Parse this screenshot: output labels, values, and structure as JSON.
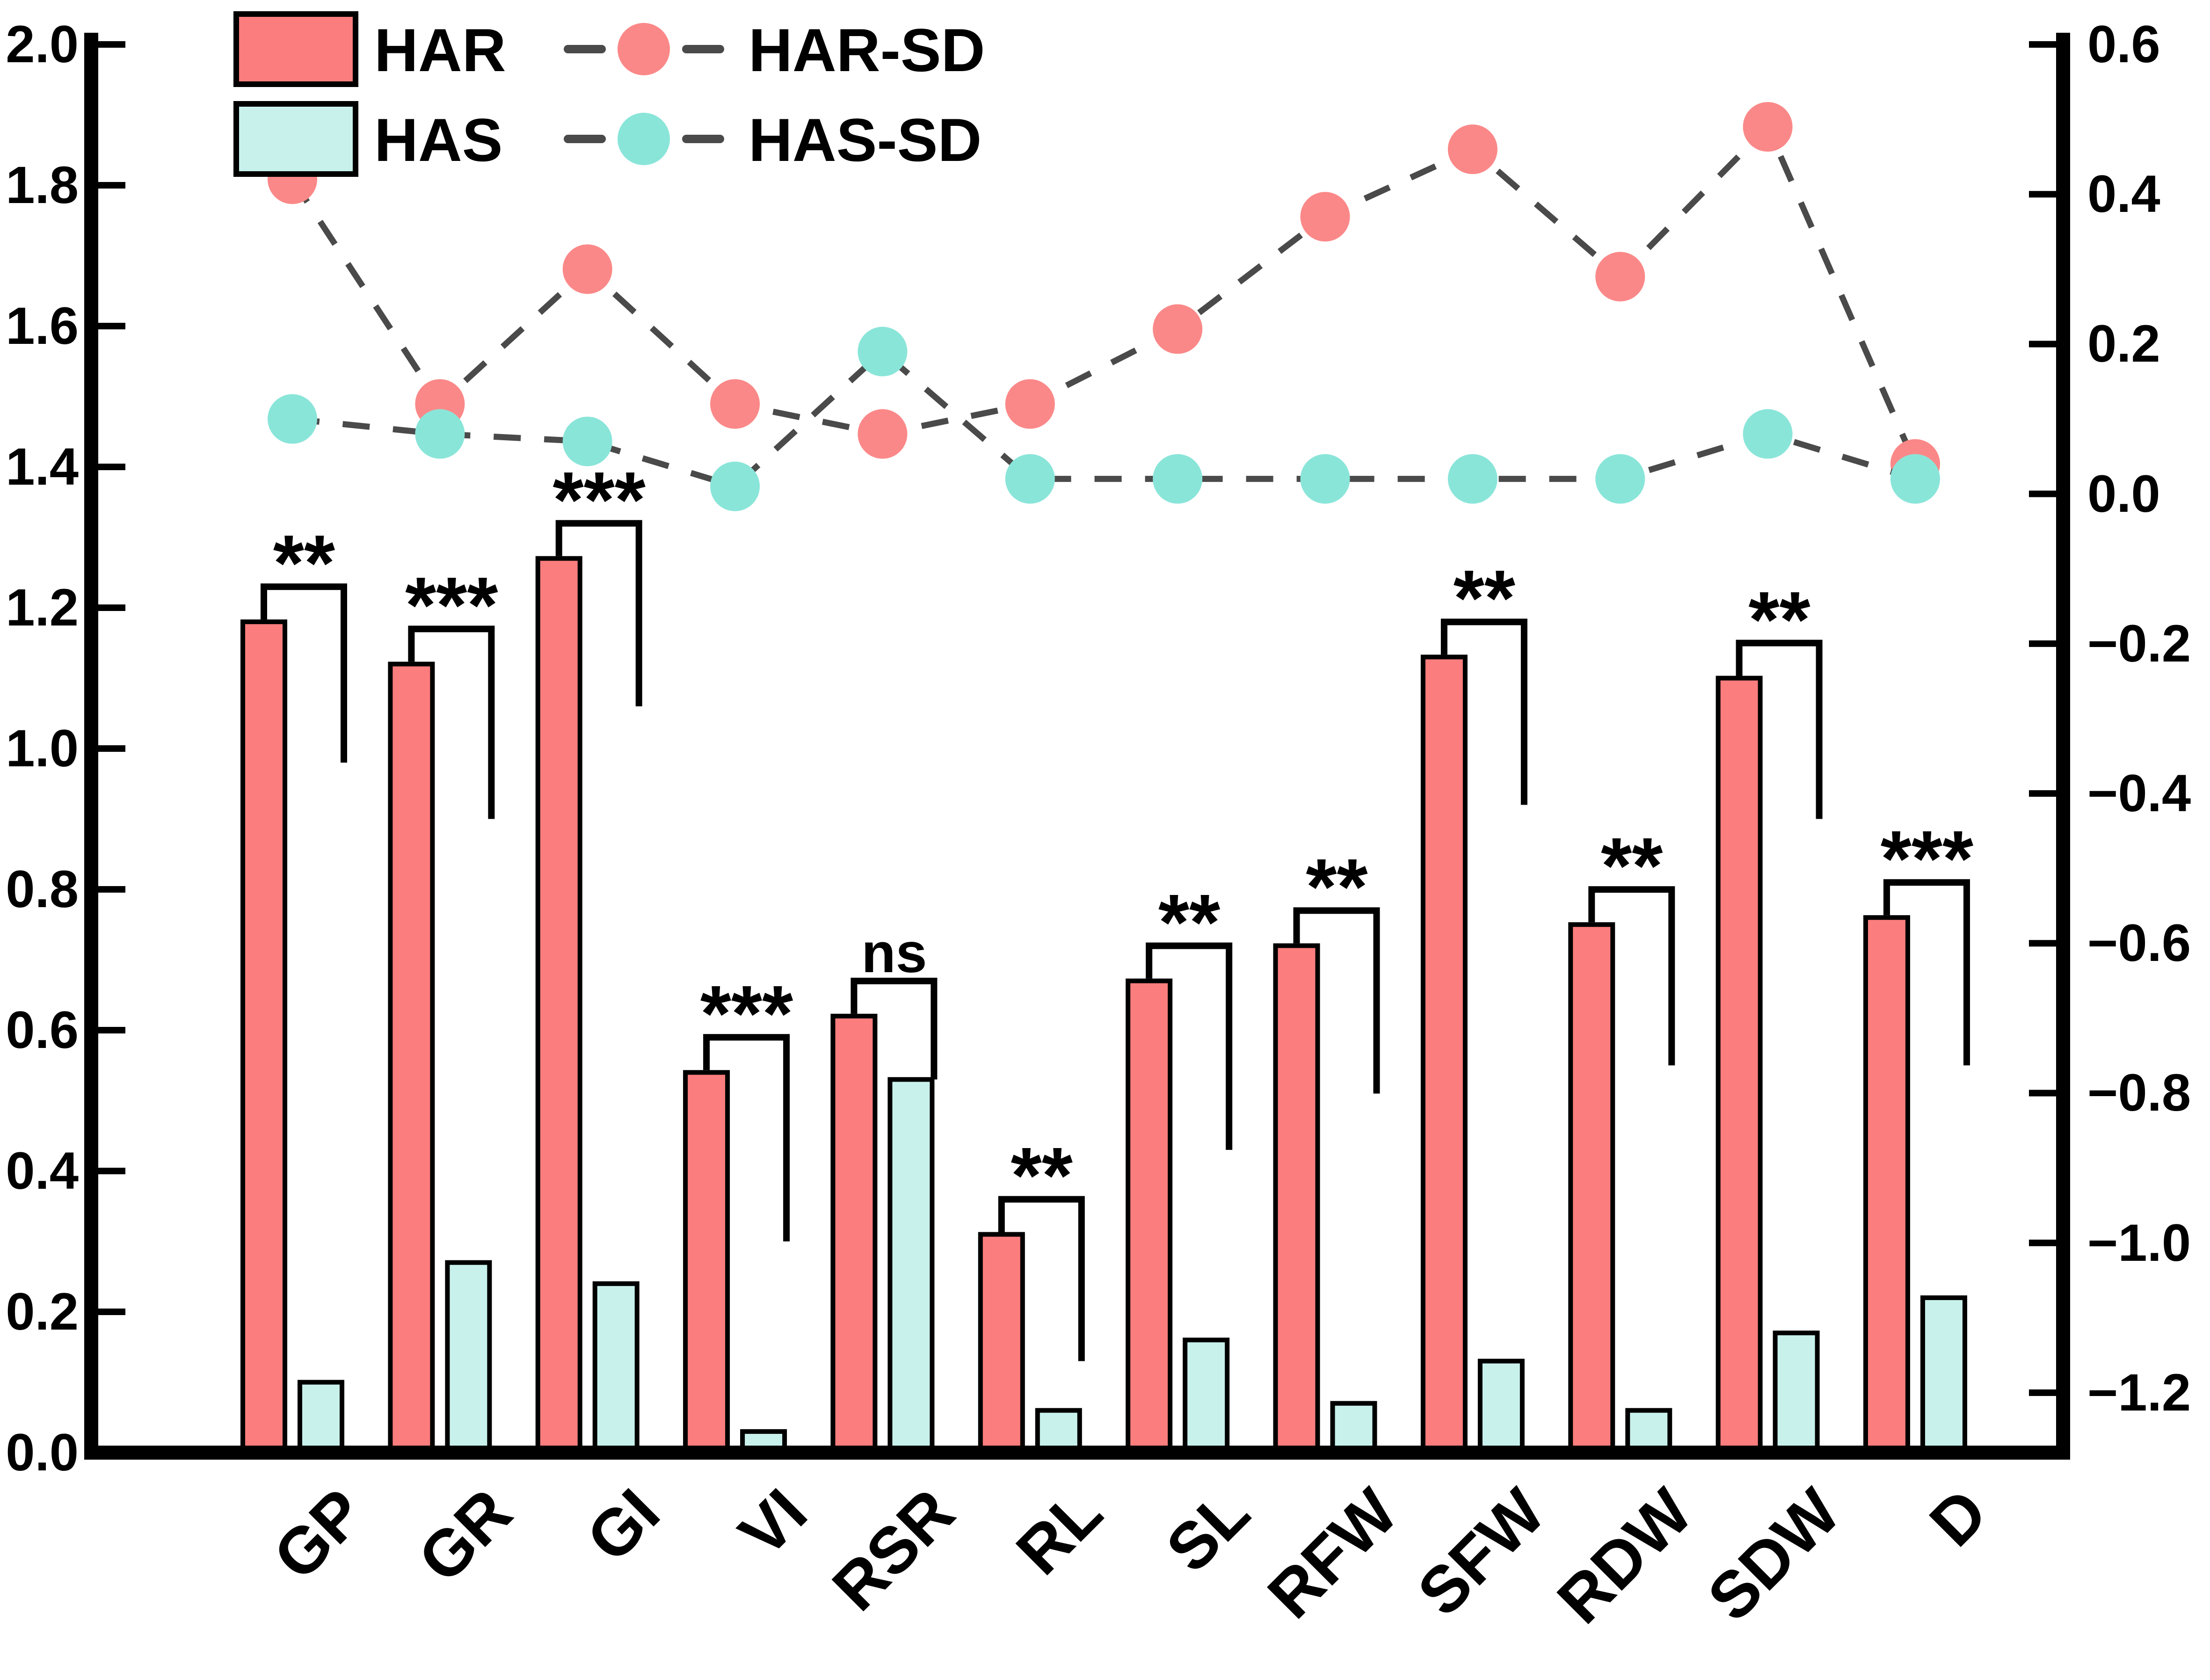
{
  "chart_data": {
    "type": "bar",
    "title": "",
    "categories": [
      "GP",
      "GR",
      "GI",
      "VI",
      "RSR",
      "RL",
      "SL",
      "RFW",
      "SFW",
      "RDW",
      "SDW",
      "D"
    ],
    "series": [
      {
        "name": "HAR",
        "axis": "left",
        "fill": "#FB7D7D",
        "values": [
          1.18,
          1.12,
          1.27,
          0.54,
          0.62,
          0.31,
          0.67,
          0.72,
          1.13,
          0.75,
          1.1,
          0.76
        ]
      },
      {
        "name": "HAS",
        "axis": "left",
        "fill": "#C8F1EC",
        "values": [
          0.1,
          0.27,
          0.24,
          0.03,
          0.53,
          0.06,
          0.16,
          0.07,
          0.13,
          0.06,
          0.17,
          0.22
        ]
      }
    ],
    "scatter_series": [
      {
        "name": "HAR-SD",
        "axis": "right",
        "color": "#FB8888",
        "values": [
          0.42,
          0.12,
          0.3,
          0.12,
          0.08,
          0.12,
          0.22,
          0.37,
          0.46,
          0.29,
          0.49,
          0.04
        ]
      },
      {
        "name": "HAS-SD",
        "axis": "right",
        "color": "#8AE5D9",
        "values": [
          0.1,
          0.08,
          0.07,
          0.01,
          0.19,
          0.02,
          0.02,
          0.02,
          0.02,
          0.02,
          0.08,
          0.02
        ]
      }
    ],
    "significance": {
      "labels": [
        "**",
        "***",
        "***",
        "***",
        "ns",
        "**",
        "**",
        "**",
        "**",
        "**",
        "**",
        "***"
      ],
      "bracket_end_values": [
        0.98,
        0.9,
        1.06,
        0.3,
        0.53,
        0.13,
        0.43,
        0.51,
        0.92,
        0.55,
        0.9,
        0.55
      ]
    },
    "left_axis": {
      "min": 0.0,
      "max": 2.0,
      "ticks": [
        "2.0",
        "1.8",
        "1.6",
        "1.4",
        "1.2",
        "1.0",
        "0.8",
        "0.6",
        "0.4",
        "0.2",
        "0.0"
      ]
    },
    "right_axis": {
      "min": -1.28,
      "max": 0.6,
      "ticks": [
        "0.6",
        "0.4",
        "0.2",
        "0.0",
        "−0.2",
        "−0.4",
        "−0.6",
        "−0.8",
        "−1.0",
        "−1.2"
      ]
    },
    "line_color": "#4A4A4A",
    "axis_color": "#000000",
    "legend": {
      "bar_items": [
        "HAR",
        "HAS"
      ],
      "line_items": [
        "HAR-SD",
        "HAS-SD"
      ]
    },
    "grid": false,
    "legend_position": "top-left"
  }
}
